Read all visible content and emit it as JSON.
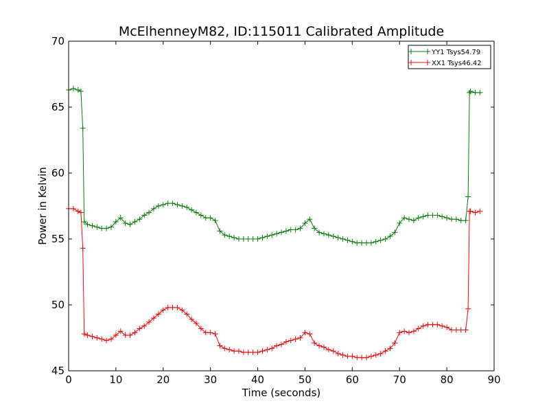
{
  "chart_data": {
    "type": "line",
    "title": "McElhenneyM82, ID:115011 Calibrated Amplitude",
    "xlabel": "Time (seconds)",
    "ylabel": "Power in Kelvin",
    "xlim": [
      0,
      90
    ],
    "ylim": [
      45,
      70
    ],
    "xticks": [
      "0",
      "10",
      "20",
      "30",
      "40",
      "50",
      "60",
      "70",
      "80",
      "90"
    ],
    "yticks": [
      "45",
      "50",
      "55",
      "60",
      "65",
      "70"
    ],
    "grid": false,
    "legend_position": "top-right",
    "marker": "+",
    "series": [
      {
        "name": "YY1 Tsys54.79",
        "color": "#008000",
        "x": [
          0,
          1,
          2,
          2.6,
          3.0,
          3.3,
          4,
          5,
          6,
          7,
          8,
          9,
          10,
          11,
          12,
          13,
          14,
          15,
          16,
          17,
          18,
          19,
          20,
          21,
          22,
          23,
          24,
          25,
          26,
          27,
          28,
          29,
          30,
          31,
          32,
          33,
          34,
          35,
          36,
          37,
          38,
          39,
          40,
          41,
          42,
          43,
          44,
          45,
          46,
          47,
          48,
          49,
          50,
          51,
          52,
          53,
          54,
          55,
          56,
          57,
          58,
          59,
          60,
          61,
          62,
          63,
          64,
          65,
          66,
          67,
          68,
          69,
          70,
          71,
          72,
          73,
          74,
          75,
          76,
          77,
          78,
          79,
          80,
          81,
          82,
          83,
          84,
          84.5,
          84.8,
          85,
          86,
          87
        ],
        "y": [
          66.3,
          66.4,
          66.3,
          66.2,
          63.4,
          56.3,
          56.1,
          56.0,
          55.9,
          55.8,
          55.8,
          55.9,
          56.3,
          56.6,
          56.2,
          56.1,
          56.3,
          56.5,
          56.8,
          57.0,
          57.3,
          57.5,
          57.6,
          57.7,
          57.7,
          57.6,
          57.5,
          57.4,
          57.2,
          57.0,
          56.8,
          56.6,
          56.6,
          56.4,
          55.6,
          55.3,
          55.2,
          55.1,
          55.0,
          55.0,
          55.0,
          55.0,
          55.0,
          55.1,
          55.2,
          55.3,
          55.4,
          55.5,
          55.6,
          55.7,
          55.7,
          55.8,
          56.2,
          56.5,
          55.8,
          55.5,
          55.4,
          55.3,
          55.2,
          55.1,
          55.0,
          54.9,
          54.8,
          54.7,
          54.7,
          54.7,
          54.7,
          54.8,
          54.9,
          55.0,
          55.2,
          55.5,
          56.2,
          56.6,
          56.5,
          56.4,
          56.6,
          56.7,
          56.8,
          56.8,
          56.8,
          56.7,
          56.6,
          56.5,
          56.5,
          56.4,
          56.4,
          58.2,
          66.1,
          66.2,
          66.1,
          66.1
        ]
      },
      {
        "name": "XX1 Tsys46.42",
        "color": "#ff0000",
        "x": [
          0,
          1,
          2,
          2.6,
          3.0,
          3.3,
          4,
          5,
          6,
          7,
          8,
          9,
          10,
          11,
          12,
          13,
          14,
          15,
          16,
          17,
          18,
          19,
          20,
          21,
          22,
          23,
          24,
          25,
          26,
          27,
          28,
          29,
          30,
          31,
          32,
          33,
          34,
          35,
          36,
          37,
          38,
          39,
          40,
          41,
          42,
          43,
          44,
          45,
          46,
          47,
          48,
          49,
          50,
          51,
          52,
          53,
          54,
          55,
          56,
          57,
          58,
          59,
          60,
          61,
          62,
          63,
          64,
          65,
          66,
          67,
          68,
          69,
          70,
          71,
          72,
          73,
          74,
          75,
          76,
          77,
          78,
          79,
          80,
          81,
          82,
          83,
          84,
          84.5,
          84.8,
          85,
          86,
          87
        ],
        "y": [
          57.3,
          57.3,
          57.1,
          57.0,
          54.3,
          47.8,
          47.7,
          47.6,
          47.5,
          47.4,
          47.3,
          47.4,
          47.7,
          48.0,
          47.7,
          47.7,
          47.9,
          48.2,
          48.4,
          48.7,
          49.0,
          49.3,
          49.6,
          49.8,
          49.8,
          49.8,
          49.6,
          49.3,
          48.9,
          48.6,
          48.2,
          47.9,
          47.9,
          47.8,
          46.9,
          46.7,
          46.6,
          46.5,
          46.5,
          46.4,
          46.4,
          46.4,
          46.4,
          46.5,
          46.6,
          46.7,
          46.9,
          47.0,
          47.2,
          47.3,
          47.4,
          47.5,
          47.9,
          47.8,
          47.1,
          46.9,
          46.8,
          46.6,
          46.5,
          46.3,
          46.2,
          46.1,
          46.1,
          46.0,
          46.0,
          46.0,
          46.1,
          46.2,
          46.3,
          46.5,
          46.7,
          47.1,
          47.9,
          48.0,
          47.9,
          48.0,
          48.2,
          48.4,
          48.5,
          48.5,
          48.5,
          48.4,
          48.3,
          48.1,
          48.1,
          48.1,
          48.1,
          49.7,
          57.1,
          57.1,
          57.0,
          57.1
        ]
      }
    ]
  }
}
